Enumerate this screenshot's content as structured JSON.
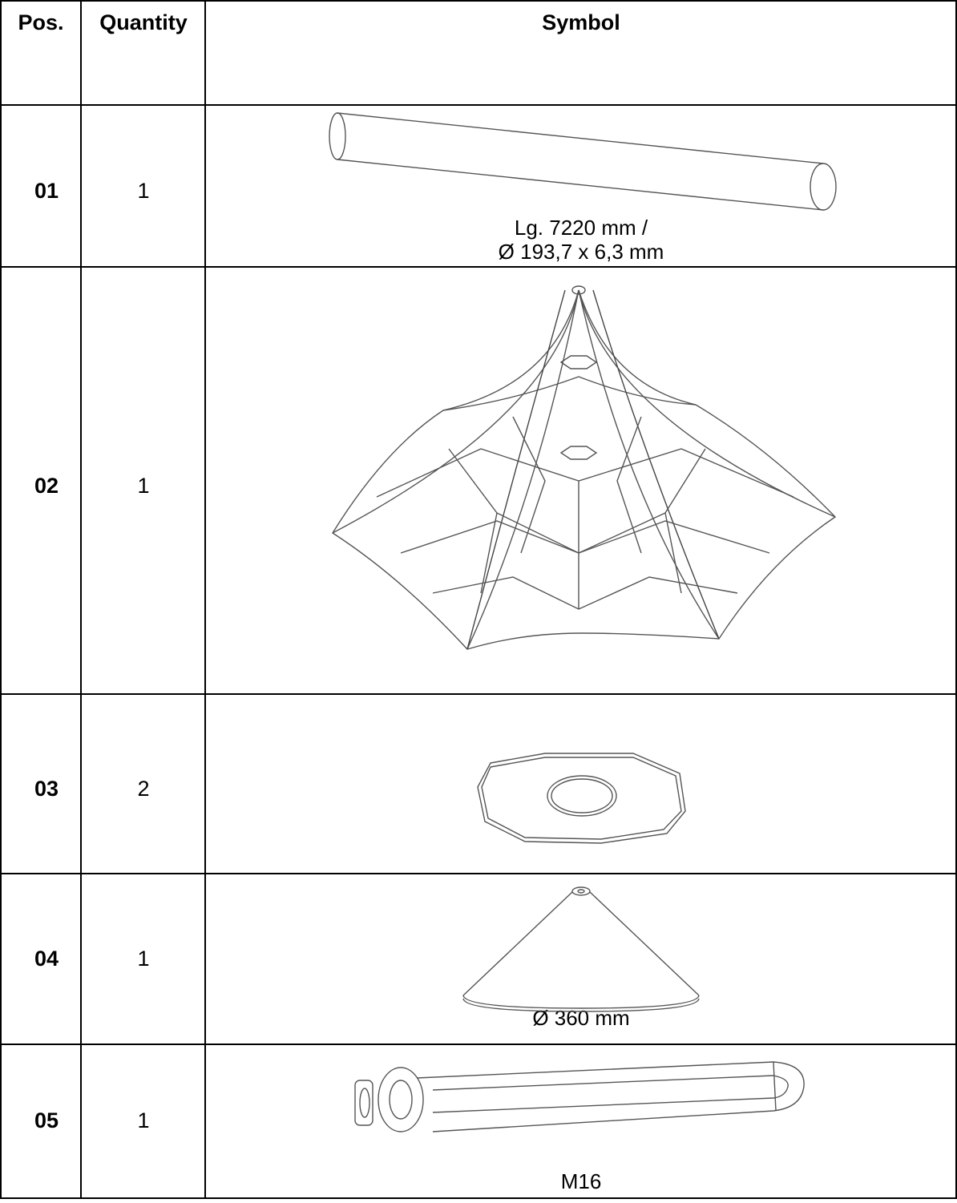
{
  "table": {
    "header": [
      "Pos.",
      "Quantity",
      "Symbol"
    ],
    "rows": [
      {
        "pos": "01",
        "quantity": "1",
        "caption": [
          "Lg. 7220 mm /",
          "Ø 193,7 x 6,3 mm"
        ]
      },
      {
        "pos": "02",
        "quantity": "1"
      },
      {
        "pos": "03",
        "quantity": "2"
      },
      {
        "pos": "04",
        "quantity": "1",
        "caption": [
          "Ø 360 mm"
        ]
      },
      {
        "pos": "05",
        "quantity": "1",
        "caption": [
          "M16"
        ]
      }
    ]
  }
}
